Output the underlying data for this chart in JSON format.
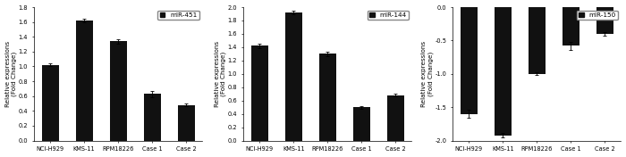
{
  "charts": [
    {
      "title": "miR-451",
      "ylabel": "Relative expressions\n(Fold Change)",
      "categories": [
        "NCI-H929",
        "KMS-11",
        "RPM18226",
        "Case 1",
        "Case 2"
      ],
      "values": [
        1.02,
        1.62,
        1.34,
        0.63,
        0.48
      ],
      "errors": [
        0.02,
        0.03,
        0.03,
        0.04,
        0.02
      ],
      "ylim": [
        0,
        1.8
      ],
      "yticks": [
        0.0,
        0.2,
        0.4,
        0.6,
        0.8,
        1.0,
        1.2,
        1.4,
        1.6,
        1.8
      ],
      "yticklabels": [
        "0.0",
        "0.2",
        "0.4",
        "0.6",
        "0.8",
        "1.0",
        "1.2",
        "1.4",
        "1.6",
        "1.8"
      ],
      "invert_y": false,
      "plot_values": [
        1.02,
        1.62,
        1.34,
        0.63,
        0.48
      ]
    },
    {
      "title": "miR-144",
      "ylabel": "Relative expressions\n(Fold Change)",
      "categories": [
        "NCI-H929",
        "KMS-11",
        "RPM18226",
        "Case 1",
        "Case 2"
      ],
      "values": [
        1.42,
        1.92,
        1.3,
        0.5,
        0.68
      ],
      "errors": [
        0.03,
        0.03,
        0.03,
        0.02,
        0.02
      ],
      "ylim": [
        0,
        2.0
      ],
      "yticks": [
        0.0,
        0.2,
        0.4,
        0.6,
        0.8,
        1.0,
        1.2,
        1.4,
        1.6,
        1.8,
        2.0
      ],
      "yticklabels": [
        "0.0",
        "0.2",
        "0.4",
        "0.6",
        "0.8",
        "1.0",
        "1.2",
        "1.4",
        "1.6",
        "1.8",
        "2.0"
      ],
      "invert_y": false,
      "plot_values": [
        1.42,
        1.92,
        1.3,
        0.5,
        0.68
      ]
    },
    {
      "title": "miR-150",
      "ylabel": "Relative expressions\n(Fold Change)",
      "categories": [
        "NCI-H929",
        "KMS-11",
        "RPM18226",
        "Case 1",
        "Case 2"
      ],
      "values": [
        -1.6,
        -1.92,
        -1.0,
        -0.58,
        -0.4
      ],
      "errors": [
        0.06,
        0.03,
        0.02,
        0.06,
        0.03
      ],
      "ylim": [
        0,
        2.0
      ],
      "yticks": [
        0.0,
        0.5,
        1.0,
        1.5,
        2.0
      ],
      "yticklabels": [
        "0.0",
        "-0.5",
        "-1.0",
        "-1.5",
        "-2.0"
      ],
      "invert_y": true,
      "plot_values": [
        1.6,
        1.92,
        1.0,
        0.58,
        0.4
      ]
    }
  ],
  "bar_color": "#111111",
  "bar_width": 0.5,
  "tick_labelsize": 4.8,
  "ylabel_fontsize": 5.2,
  "legend_fontsize": 5.2,
  "fig_width": 7.0,
  "fig_height": 1.76,
  "dpi": 100
}
